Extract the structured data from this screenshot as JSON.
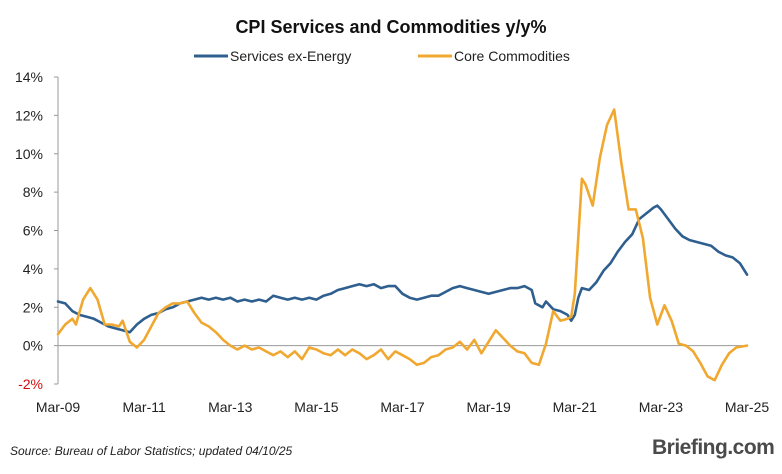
{
  "chart_data": {
    "type": "line",
    "title": "CPI Services and Commodities y/y%",
    "xlabel": "",
    "ylabel": "",
    "ylim": [
      -2,
      14
    ],
    "yticks": [
      "-2%",
      "0%",
      "2%",
      "4%",
      "6%",
      "8%",
      "10%",
      "12%",
      "14%"
    ],
    "yticks_values": [
      -2,
      0,
      2,
      4,
      6,
      8,
      10,
      12,
      14
    ],
    "negative_tick_color": "#d01010",
    "x_range": [
      "2009-03",
      "2025-03"
    ],
    "xticks": [
      "Mar-09",
      "Mar-11",
      "Mar-13",
      "Mar-15",
      "Mar-17",
      "Mar-19",
      "Mar-21",
      "Mar-23",
      "Mar-25"
    ],
    "zero_line": true,
    "grid": false,
    "legend_position": "top-center",
    "series": [
      {
        "name": "Services ex-Energy",
        "color": "#2f5f8f",
        "points": [
          [
            "2009-03",
            2.3
          ],
          [
            "2009-05",
            2.2
          ],
          [
            "2009-07",
            1.8
          ],
          [
            "2009-09",
            1.6
          ],
          [
            "2009-11",
            1.5
          ],
          [
            "2010-01",
            1.4
          ],
          [
            "2010-03",
            1.2
          ],
          [
            "2010-05",
            1.0
          ],
          [
            "2010-07",
            0.9
          ],
          [
            "2010-09",
            0.8
          ],
          [
            "2010-11",
            0.7
          ],
          [
            "2011-01",
            1.1
          ],
          [
            "2011-03",
            1.4
          ],
          [
            "2011-05",
            1.6
          ],
          [
            "2011-07",
            1.7
          ],
          [
            "2011-09",
            1.9
          ],
          [
            "2011-11",
            2.0
          ],
          [
            "2012-01",
            2.2
          ],
          [
            "2012-03",
            2.3
          ],
          [
            "2012-05",
            2.4
          ],
          [
            "2012-07",
            2.5
          ],
          [
            "2012-09",
            2.4
          ],
          [
            "2012-11",
            2.5
          ],
          [
            "2013-01",
            2.4
          ],
          [
            "2013-03",
            2.5
          ],
          [
            "2013-05",
            2.3
          ],
          [
            "2013-07",
            2.4
          ],
          [
            "2013-09",
            2.3
          ],
          [
            "2013-11",
            2.4
          ],
          [
            "2014-01",
            2.3
          ],
          [
            "2014-03",
            2.6
          ],
          [
            "2014-05",
            2.5
          ],
          [
            "2014-07",
            2.4
          ],
          [
            "2014-09",
            2.5
          ],
          [
            "2014-11",
            2.4
          ],
          [
            "2015-01",
            2.5
          ],
          [
            "2015-03",
            2.4
          ],
          [
            "2015-05",
            2.6
          ],
          [
            "2015-07",
            2.7
          ],
          [
            "2015-09",
            2.9
          ],
          [
            "2015-11",
            3.0
          ],
          [
            "2016-01",
            3.1
          ],
          [
            "2016-03",
            3.2
          ],
          [
            "2016-05",
            3.1
          ],
          [
            "2016-07",
            3.2
          ],
          [
            "2016-09",
            3.0
          ],
          [
            "2016-11",
            3.1
          ],
          [
            "2017-01",
            3.1
          ],
          [
            "2017-03",
            2.7
          ],
          [
            "2017-05",
            2.5
          ],
          [
            "2017-07",
            2.4
          ],
          [
            "2017-09",
            2.5
          ],
          [
            "2017-11",
            2.6
          ],
          [
            "2018-01",
            2.6
          ],
          [
            "2018-03",
            2.8
          ],
          [
            "2018-05",
            3.0
          ],
          [
            "2018-07",
            3.1
          ],
          [
            "2018-09",
            3.0
          ],
          [
            "2018-11",
            2.9
          ],
          [
            "2019-01",
            2.8
          ],
          [
            "2019-03",
            2.7
          ],
          [
            "2019-05",
            2.8
          ],
          [
            "2019-07",
            2.9
          ],
          [
            "2019-09",
            3.0
          ],
          [
            "2019-11",
            3.0
          ],
          [
            "2020-01",
            3.1
          ],
          [
            "2020-03",
            2.9
          ],
          [
            "2020-04",
            2.2
          ],
          [
            "2020-06",
            2.0
          ],
          [
            "2020-07",
            2.3
          ],
          [
            "2020-09",
            1.9
          ],
          [
            "2020-11",
            1.8
          ],
          [
            "2021-01",
            1.6
          ],
          [
            "2021-02",
            1.3
          ],
          [
            "2021-03",
            1.6
          ],
          [
            "2021-04",
            2.5
          ],
          [
            "2021-05",
            3.0
          ],
          [
            "2021-07",
            2.9
          ],
          [
            "2021-09",
            3.3
          ],
          [
            "2021-11",
            3.9
          ],
          [
            "2022-01",
            4.3
          ],
          [
            "2022-03",
            4.9
          ],
          [
            "2022-05",
            5.4
          ],
          [
            "2022-07",
            5.8
          ],
          [
            "2022-09",
            6.6
          ],
          [
            "2022-11",
            6.9
          ],
          [
            "2023-01",
            7.2
          ],
          [
            "2023-02",
            7.3
          ],
          [
            "2023-03",
            7.1
          ],
          [
            "2023-05",
            6.6
          ],
          [
            "2023-07",
            6.1
          ],
          [
            "2023-09",
            5.7
          ],
          [
            "2023-11",
            5.5
          ],
          [
            "2024-01",
            5.4
          ],
          [
            "2024-03",
            5.3
          ],
          [
            "2024-05",
            5.2
          ],
          [
            "2024-07",
            4.9
          ],
          [
            "2024-09",
            4.7
          ],
          [
            "2024-11",
            4.6
          ],
          [
            "2025-01",
            4.3
          ],
          [
            "2025-03",
            3.7
          ]
        ]
      },
      {
        "name": "Core Commodities",
        "color": "#f0a830",
        "points": [
          [
            "2009-03",
            0.6
          ],
          [
            "2009-05",
            1.1
          ],
          [
            "2009-07",
            1.4
          ],
          [
            "2009-08",
            1.1
          ],
          [
            "2009-10",
            2.4
          ],
          [
            "2009-12",
            3.0
          ],
          [
            "2010-02",
            2.4
          ],
          [
            "2010-04",
            1.1
          ],
          [
            "2010-06",
            1.1
          ],
          [
            "2010-08",
            1.0
          ],
          [
            "2010-09",
            1.3
          ],
          [
            "2010-11",
            0.2
          ],
          [
            "2011-01",
            -0.1
          ],
          [
            "2011-03",
            0.3
          ],
          [
            "2011-05",
            1.0
          ],
          [
            "2011-07",
            1.7
          ],
          [
            "2011-09",
            2.0
          ],
          [
            "2011-11",
            2.2
          ],
          [
            "2012-01",
            2.2
          ],
          [
            "2012-03",
            2.3
          ],
          [
            "2012-05",
            1.7
          ],
          [
            "2012-07",
            1.2
          ],
          [
            "2012-09",
            1.0
          ],
          [
            "2012-11",
            0.7
          ],
          [
            "2013-01",
            0.3
          ],
          [
            "2013-03",
            0.0
          ],
          [
            "2013-05",
            -0.2
          ],
          [
            "2013-07",
            0.0
          ],
          [
            "2013-09",
            -0.2
          ],
          [
            "2013-11",
            -0.1
          ],
          [
            "2014-01",
            -0.3
          ],
          [
            "2014-03",
            -0.5
          ],
          [
            "2014-05",
            -0.3
          ],
          [
            "2014-07",
            -0.6
          ],
          [
            "2014-09",
            -0.3
          ],
          [
            "2014-11",
            -0.7
          ],
          [
            "2015-01",
            -0.1
          ],
          [
            "2015-03",
            -0.2
          ],
          [
            "2015-05",
            -0.4
          ],
          [
            "2015-07",
            -0.5
          ],
          [
            "2015-09",
            -0.2
          ],
          [
            "2015-11",
            -0.5
          ],
          [
            "2016-01",
            -0.2
          ],
          [
            "2016-03",
            -0.4
          ],
          [
            "2016-05",
            -0.7
          ],
          [
            "2016-07",
            -0.5
          ],
          [
            "2016-09",
            -0.2
          ],
          [
            "2016-11",
            -0.7
          ],
          [
            "2017-01",
            -0.3
          ],
          [
            "2017-03",
            -0.5
          ],
          [
            "2017-05",
            -0.7
          ],
          [
            "2017-07",
            -1.0
          ],
          [
            "2017-09",
            -0.9
          ],
          [
            "2017-11",
            -0.6
          ],
          [
            "2018-01",
            -0.5
          ],
          [
            "2018-03",
            -0.2
          ],
          [
            "2018-05",
            -0.1
          ],
          [
            "2018-07",
            0.2
          ],
          [
            "2018-09",
            -0.2
          ],
          [
            "2018-11",
            0.3
          ],
          [
            "2019-01",
            -0.4
          ],
          [
            "2019-03",
            0.2
          ],
          [
            "2019-05",
            0.8
          ],
          [
            "2019-07",
            0.4
          ],
          [
            "2019-09",
            0.0
          ],
          [
            "2019-11",
            -0.3
          ],
          [
            "2020-01",
            -0.4
          ],
          [
            "2020-03",
            -0.9
          ],
          [
            "2020-05",
            -1.0
          ],
          [
            "2020-07",
            0.1
          ],
          [
            "2020-09",
            1.8
          ],
          [
            "2020-11",
            1.3
          ],
          [
            "2021-01",
            1.4
          ],
          [
            "2021-02",
            1.5
          ],
          [
            "2021-03",
            2.7
          ],
          [
            "2021-05",
            8.7
          ],
          [
            "2021-06",
            8.4
          ],
          [
            "2021-08",
            7.3
          ],
          [
            "2021-10",
            9.8
          ],
          [
            "2021-12",
            11.5
          ],
          [
            "2022-02",
            12.3
          ],
          [
            "2022-04",
            9.5
          ],
          [
            "2022-06",
            7.1
          ],
          [
            "2022-08",
            7.1
          ],
          [
            "2022-10",
            5.6
          ],
          [
            "2022-12",
            2.5
          ],
          [
            "2023-02",
            1.1
          ],
          [
            "2023-04",
            2.1
          ],
          [
            "2023-06",
            1.3
          ],
          [
            "2023-08",
            0.1
          ],
          [
            "2023-10",
            0.0
          ],
          [
            "2023-12",
            -0.3
          ],
          [
            "2024-02",
            -0.9
          ],
          [
            "2024-04",
            -1.6
          ],
          [
            "2024-06",
            -1.8
          ],
          [
            "2024-08",
            -1.0
          ],
          [
            "2024-10",
            -0.4
          ],
          [
            "2024-12",
            -0.1
          ],
          [
            "2025-03",
            0.0
          ]
        ]
      }
    ]
  },
  "footer": {
    "source": "Source: Bureau of Labor Statistics; updated 04/10/25",
    "brand": "Briefing.com"
  }
}
